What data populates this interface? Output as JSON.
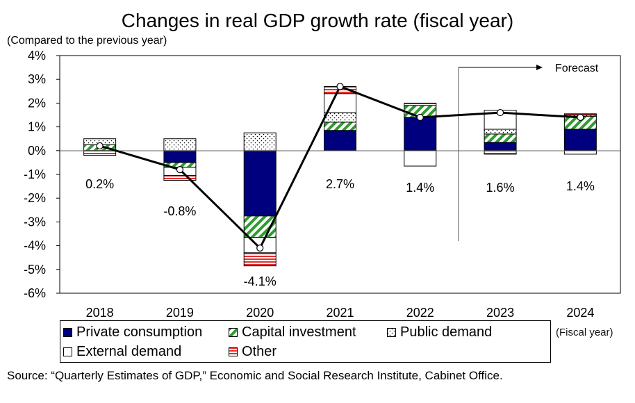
{
  "chart_data": {
    "type": "bar",
    "title": "Changes in real GDP growth rate (fiscal year)",
    "unit_note": "(Compared to the previous year)",
    "xlabel_note": "(Fiscal year)",
    "source": "Source: “Quarterly Estimates of GDP,” Economic and Social Research Institute, Cabinet Office.",
    "forecast_label": "Forecast",
    "forecast_from": "2023",
    "categories": [
      "2018",
      "2019",
      "2020",
      "2021",
      "2022",
      "2023",
      "2024"
    ],
    "ylim": [
      -6,
      4
    ],
    "yticks": [
      4,
      3,
      2,
      1,
      0,
      -1,
      -2,
      -3,
      -4,
      -5,
      -6
    ],
    "ytick_labels": [
      "4%",
      "3%",
      "2%",
      "1%",
      "0%",
      "-1%",
      "-2%",
      "-3%",
      "-4%",
      "-5%",
      "-6%"
    ],
    "stacked": true,
    "series": [
      {
        "name": "Private consumption",
        "color": "#00007f",
        "pattern": "solid",
        "values": [
          0.0,
          -0.5,
          -2.75,
          0.85,
          1.4,
          0.35,
          0.9
        ]
      },
      {
        "name": "Capital investment",
        "color": "#2e9b2e",
        "pattern": "diagonal-stripes",
        "values": [
          0.25,
          -0.2,
          -0.9,
          0.35,
          0.5,
          0.35,
          0.55
        ]
      },
      {
        "name": "Public demand",
        "color": "#000000",
        "pattern": "dots",
        "values": [
          0.25,
          0.5,
          0.75,
          0.4,
          0.0,
          0.2,
          0.05
        ]
      },
      {
        "name": "External demand",
        "color": "#ffffff",
        "pattern": "white",
        "values": [
          0.0,
          -0.35,
          -0.65,
          0.8,
          -0.65,
          0.8,
          -0.15
        ]
      },
      {
        "name": "Other",
        "color": "#e03030",
        "pattern": "horizontal-stripes",
        "values": [
          -0.2,
          -0.2,
          -0.55,
          0.3,
          0.1,
          -0.15,
          0.05
        ]
      }
    ],
    "total": {
      "values": [
        0.2,
        -0.8,
        -4.1,
        2.7,
        1.4,
        1.6,
        1.4
      ],
      "labels": [
        "0.2%",
        "-0.8%",
        "-4.1%",
        "2.7%",
        "1.4%",
        "1.6%",
        "1.4%"
      ]
    },
    "legend_placement": "bottom",
    "grid": false
  }
}
